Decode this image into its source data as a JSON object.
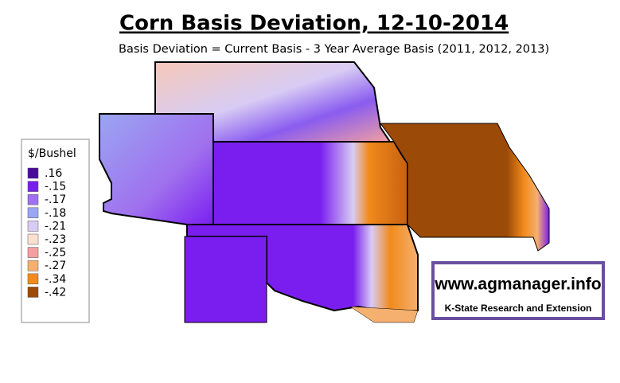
{
  "header": {
    "title": "Corn Basis Deviation, 12-10-2014",
    "subtitle": "Basis Deviation = Current Basis - 3 Year Average Basis (2011, 2012, 2013)"
  },
  "legend": {
    "title": "$/Bushel",
    "items": [
      {
        "label": ".16",
        "color": "#4b0a9e"
      },
      {
        "label": "-.15",
        "color": "#7a1ef0"
      },
      {
        "label": "-.17",
        "color": "#a070ee"
      },
      {
        "label": "-.18",
        "color": "#9aa6f2"
      },
      {
        "label": "-.21",
        "color": "#d8ccf4"
      },
      {
        "label": "-.23",
        "color": "#fbe0cf"
      },
      {
        "label": "-.25",
        "color": "#f2a0a0"
      },
      {
        "label": "-.27",
        "color": "#f5b070"
      },
      {
        "label": "-.34",
        "color": "#f28a1c"
      },
      {
        "label": "-.42",
        "color": "#9c4a08"
      }
    ]
  },
  "logo": {
    "url": "www.agmanager.info",
    "org": "K-State Research and Extension"
  }
}
